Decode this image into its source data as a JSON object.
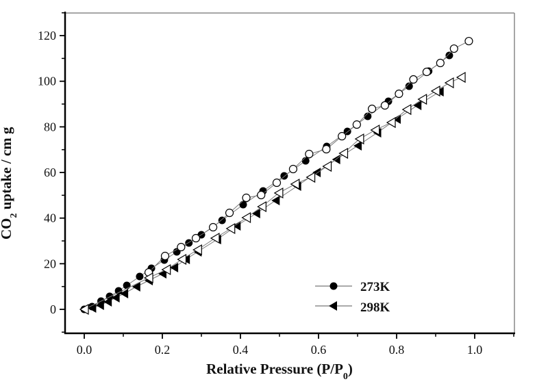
{
  "chart_data": {
    "type": "scatter",
    "title": "",
    "xlabel": "Relative Pressure (P/P",
    "xlabel_sub": "0",
    "xlabel_tail": ")",
    "ylabel_prefix": "CO",
    "ylabel_sub": "2",
    "ylabel_tail": " uptake / cm g",
    "xlim": [
      -0.05,
      1.1
    ],
    "ylim": [
      -10,
      130
    ],
    "xticks": [
      0.0,
      0.2,
      0.4,
      0.6,
      0.8,
      1.0
    ],
    "xtick_labels": [
      "0.0",
      "0.2",
      "0.4",
      "0.6",
      "0.8",
      "1.0"
    ],
    "yticks": [
      0,
      20,
      40,
      60,
      80,
      100,
      120
    ],
    "ytick_labels": [
      "0",
      "20",
      "40",
      "60",
      "80",
      "100",
      "120"
    ],
    "grid": false,
    "legend": {
      "placement": "bottom-right",
      "entries": [
        {
          "label": "273K",
          "marker": "filled-circle"
        },
        {
          "label": "298K",
          "marker": "filled-left-triangle"
        }
      ]
    },
    "series": [
      {
        "name": "273K adsorption",
        "marker": "filled-circle",
        "x": [
          0.0,
          0.02,
          0.043,
          0.065,
          0.088,
          0.109,
          0.142,
          0.172,
          0.205,
          0.237,
          0.268,
          0.3,
          0.353,
          0.407,
          0.458,
          0.512,
          0.567,
          0.621,
          0.674,
          0.726,
          0.779,
          0.832,
          0.882,
          0.935
        ],
        "y": [
          0.0,
          1.2,
          3.6,
          5.7,
          8.1,
          10.5,
          14.4,
          18.0,
          21.6,
          25.2,
          29.1,
          32.7,
          39.0,
          45.9,
          51.9,
          58.5,
          65.1,
          71.4,
          78.0,
          84.6,
          91.2,
          97.8,
          104.4,
          111.3
        ]
      },
      {
        "name": "273K desorption",
        "marker": "open-circle",
        "x": [
          0.165,
          0.207,
          0.248,
          0.286,
          0.33,
          0.372,
          0.415,
          0.453,
          0.493,
          0.535,
          0.576,
          0.62,
          0.66,
          0.698,
          0.737,
          0.77,
          0.806,
          0.843,
          0.877,
          0.912,
          0.947,
          0.985
        ],
        "y": [
          16.2,
          23.4,
          27.3,
          31.2,
          36.0,
          42.3,
          48.9,
          50.1,
          55.5,
          61.5,
          68.1,
          70.2,
          75.9,
          81.0,
          87.9,
          89.4,
          94.5,
          100.8,
          104.1,
          108.0,
          114.3,
          117.6
        ]
      },
      {
        "name": "298K adsorption",
        "marker": "filled-left-triangle",
        "x": [
          0.0,
          0.02,
          0.04,
          0.06,
          0.08,
          0.102,
          0.133,
          0.165,
          0.2,
          0.23,
          0.26,
          0.29,
          0.34,
          0.39,
          0.44,
          0.49,
          0.545,
          0.595,
          0.645,
          0.7,
          0.75,
          0.8,
          0.853,
          0.91
        ],
        "y": [
          0.0,
          0.6,
          1.8,
          3.3,
          5.1,
          6.9,
          9.9,
          12.6,
          15.6,
          18.3,
          21.9,
          25.2,
          30.6,
          36.6,
          42.0,
          47.7,
          54.0,
          60.0,
          65.7,
          71.7,
          77.4,
          83.4,
          89.4,
          95.4
        ]
      },
      {
        "name": "298K desorption",
        "marker": "open-left-triangle",
        "x": [
          0.0,
          0.165,
          0.21,
          0.25,
          0.29,
          0.335,
          0.375,
          0.415,
          0.455,
          0.498,
          0.54,
          0.58,
          0.622,
          0.664,
          0.705,
          0.745,
          0.786,
          0.826,
          0.866,
          0.9,
          0.935,
          0.965
        ],
        "y": [
          0.0,
          13.8,
          17.4,
          21.9,
          26.1,
          31.2,
          35.4,
          40.2,
          45.0,
          51.0,
          54.9,
          57.9,
          62.7,
          68.4,
          74.7,
          78.6,
          81.9,
          87.6,
          92.1,
          95.7,
          99.3,
          101.7
        ]
      }
    ]
  }
}
